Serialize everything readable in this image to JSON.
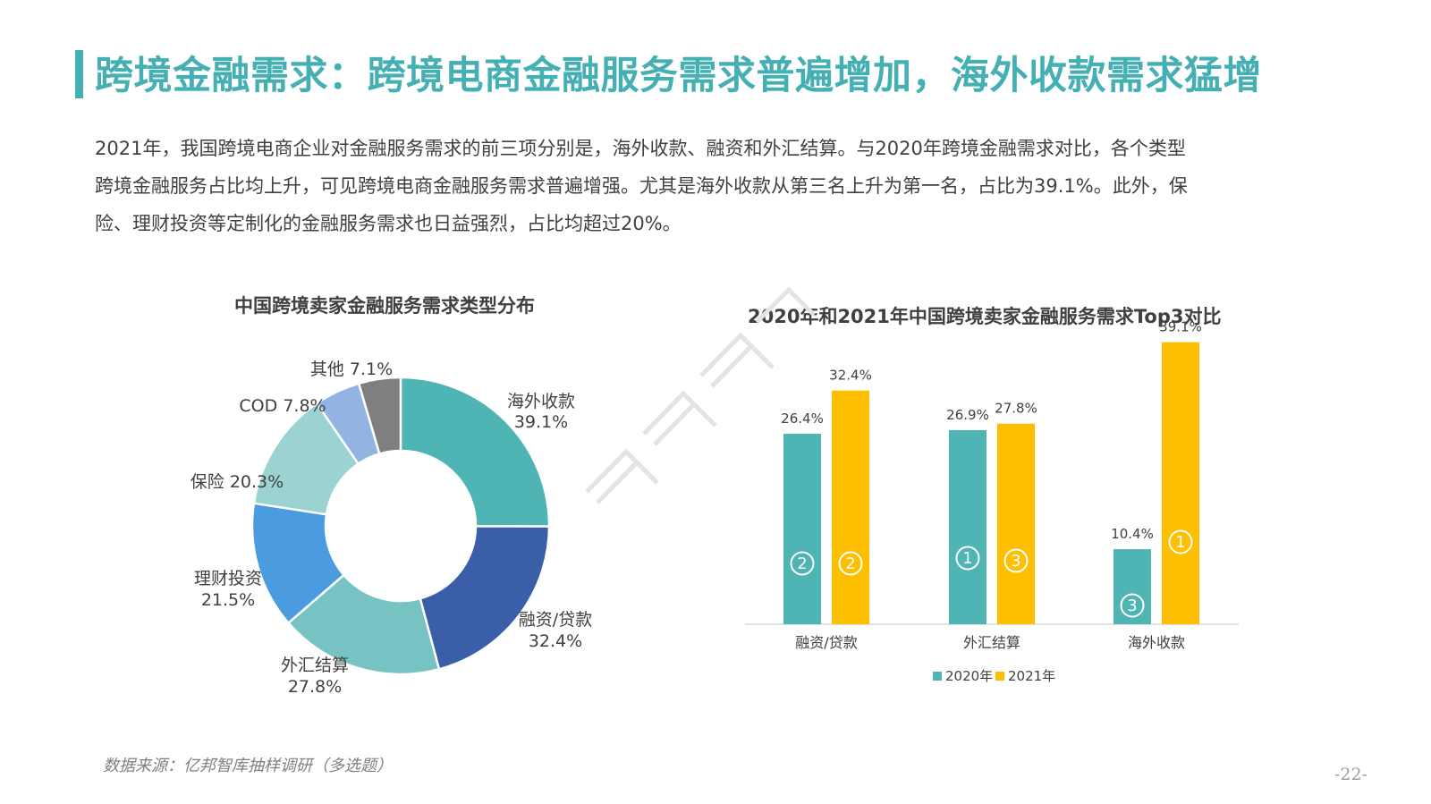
{
  "header": {
    "title": "跨境金融需求：跨境电商金融服务需求普遍增加，海外收款需求猛增"
  },
  "intro": {
    "lines": [
      "2021年，我国跨境电商企业对金融服务需求的前三项分别是，海外收款、融资和外汇结算。与2020年跨境金融需求对比，各个类型",
      "跨境金融服务占比均上升，可见跨境电商金融服务需求普遍增强。尤其是海外收款从第三名上升为第一名，占比为39.1%。此外，保",
      "险、理财投资等定制化的金融服务需求也日益强烈，占比均超过20%。"
    ]
  },
  "chart_data": [
    {
      "type": "pie",
      "title": "中国跨境卖家金融服务需求类型分布",
      "slices": [
        {
          "name": "海外收款",
          "value_label": "39.1%",
          "value": 39.1,
          "color": "#4fb4b4"
        },
        {
          "name": "融资/贷款",
          "value_label": "32.4%",
          "value": 32.4,
          "color": "#3a5fa8"
        },
        {
          "name": "外汇结算",
          "value_label": "27.8%",
          "value": 27.8,
          "color": "#77c2c2"
        },
        {
          "name": "理财投资",
          "value_label": "21.5%",
          "value": 21.5,
          "color": "#4a9be0"
        },
        {
          "name": "保险",
          "value_label": "20.3%",
          "value": 20.3,
          "color": "#9bd2d2"
        },
        {
          "name": "COD",
          "value_label": "7.8%",
          "value": 7.8,
          "color": "#93b4e3"
        },
        {
          "name": "其他",
          "value_label": "7.1%",
          "value": 7.1,
          "color": "#7f7f7f"
        }
      ]
    },
    {
      "type": "bar",
      "title": "2020年和2021年中国跨境卖家金融服务需求Top3对比",
      "categories": [
        "融资/贷款",
        "外汇结算",
        "海外收款"
      ],
      "ylim": [
        0,
        45
      ],
      "legend_position": "bottom",
      "series": [
        {
          "name": "2020年",
          "color": "#4fb4b4",
          "values": [
            26.4,
            26.9,
            10.4
          ],
          "labels": [
            "26.4%",
            "26.9%",
            "10.4%"
          ],
          "ranks": [
            "②",
            "①",
            "③"
          ]
        },
        {
          "name": "2021年",
          "color": "#fdbf00",
          "values": [
            32.4,
            27.8,
            39.1
          ],
          "labels": [
            "32.4%",
            "27.8%",
            "39.1%"
          ],
          "ranks": [
            "②",
            "③",
            "①"
          ]
        }
      ]
    }
  ],
  "footer": {
    "source": "数据来源：亿邦智库抽样调研（多选题）",
    "page": "-22-"
  }
}
